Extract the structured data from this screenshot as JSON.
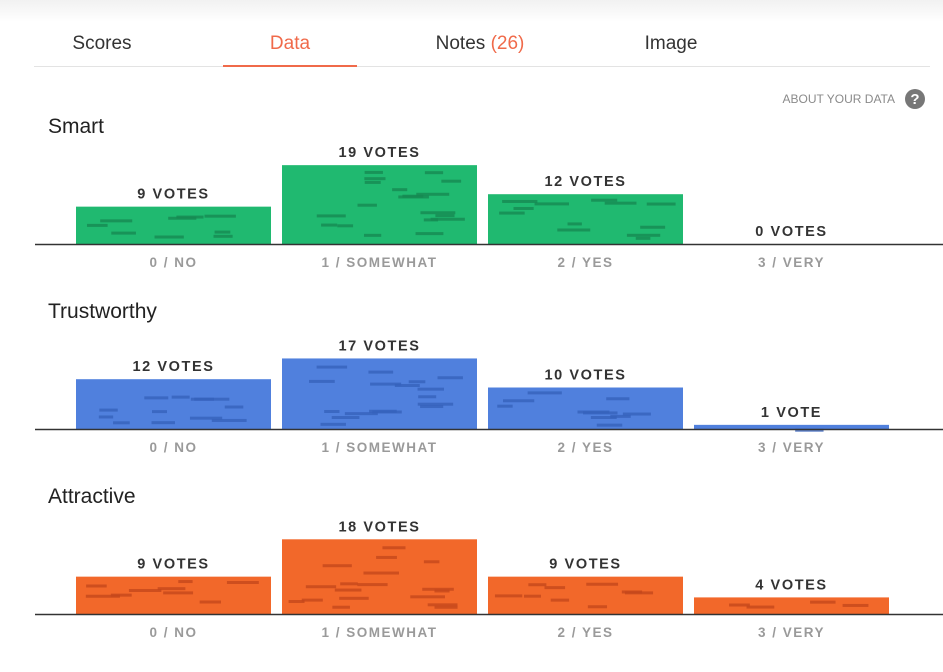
{
  "tabs": [
    {
      "label": "Scores",
      "active": false
    },
    {
      "label": "Data",
      "active": true
    },
    {
      "label": "Notes",
      "count": "(26)",
      "active": false
    },
    {
      "label": "Image",
      "active": false
    }
  ],
  "about_link": "ABOUT YOUR DATA",
  "help_icon": "question-circle-icon",
  "colors": {
    "accent": "#f06a4a",
    "smart": "#20b970",
    "trustworthy": "#5080dd",
    "attractive": "#f2682a"
  },
  "chart_data": [
    {
      "type": "bar",
      "title": "Smart",
      "categories": [
        "0 / NO",
        "1 / SOMEWHAT",
        "2 / YES",
        "3 / VERY"
      ],
      "values": [
        9,
        19,
        12,
        0
      ],
      "value_labels": [
        "9 VOTES",
        "19 VOTES",
        "12 VOTES",
        "0 VOTES"
      ],
      "color": "#20b970",
      "dark_color": "#168a52"
    },
    {
      "type": "bar",
      "title": "Trustworthy",
      "categories": [
        "0 / NO",
        "1 / SOMEWHAT",
        "2 / YES",
        "3 / VERY"
      ],
      "values": [
        12,
        17,
        10,
        1
      ],
      "value_labels": [
        "12 VOTES",
        "17 VOTES",
        "10 VOTES",
        "1 VOTE"
      ],
      "color": "#5080dd",
      "dark_color": "#3662bb"
    },
    {
      "type": "bar",
      "title": "Attractive",
      "categories": [
        "0 / NO",
        "1 / SOMEWHAT",
        "2 / YES",
        "3 / VERY"
      ],
      "values": [
        9,
        18,
        9,
        4
      ],
      "value_labels": [
        "9 VOTES",
        "18 VOTES",
        "9 VOTES",
        "4 VOTES"
      ],
      "color": "#f2682a",
      "dark_color": "#c4471c"
    }
  ]
}
